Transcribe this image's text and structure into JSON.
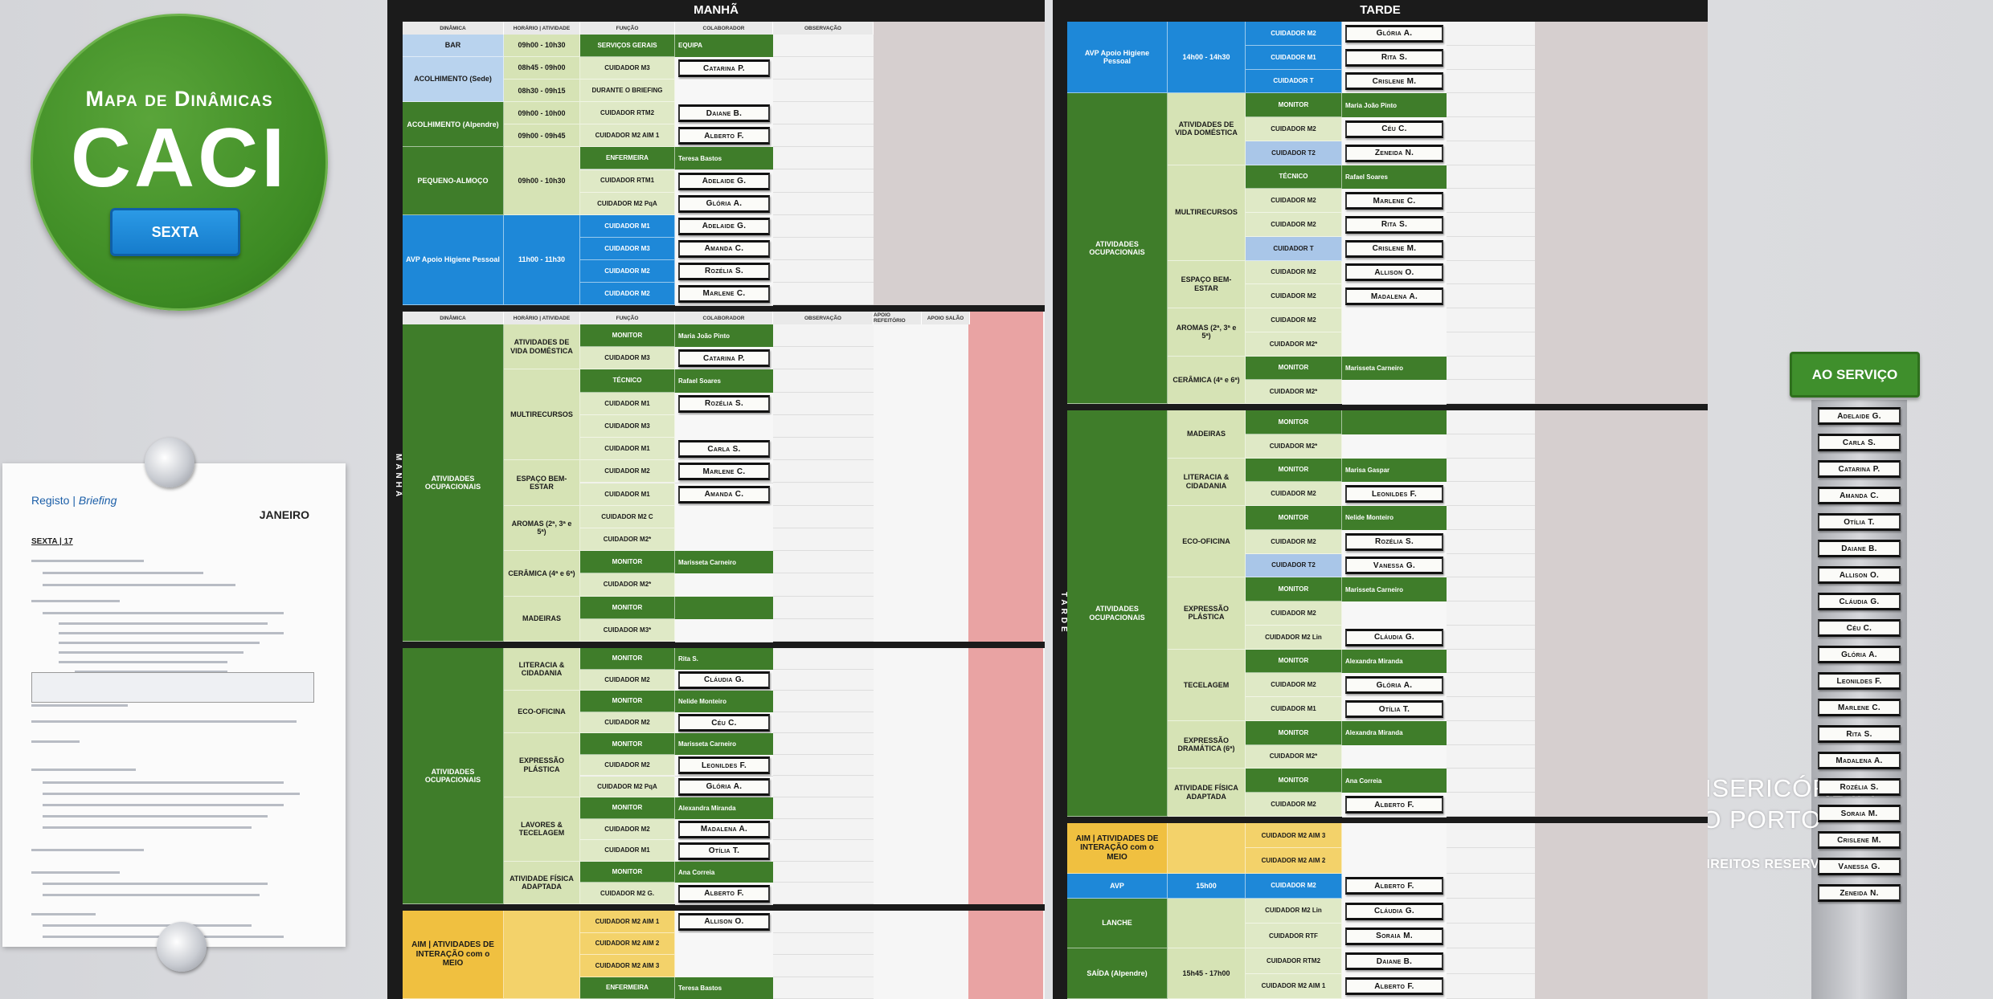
{
  "logo": {
    "subtitle": "Mapa de Dinâmicas",
    "title": "CACI",
    "day": "SEXTA"
  },
  "briefing": {
    "title": "Registo",
    "subtitle": "Briefing",
    "month": "JANEIRO",
    "date": "SEXTA | 17"
  },
  "boards": [
    {
      "title": "MANHÃ",
      "side_label": "MANHÃ",
      "sections": [
        {
          "header": [
            "DINÂMICA",
            "HORÁRIO | ATIVIDADE",
            "FUNÇÃO",
            "COLABORADOR",
            "OBSERVAÇÃO"
          ],
          "groups": [
            {
              "label": "BAR",
              "color": "#b9d3ee",
              "activities": [
                {
                  "label": "09h00 - 10h30",
                  "rows": [
                    {
                      "role": "SERVIÇOS GERAIS",
                      "name": "EQUIPA"
                    }
                  ]
                }
              ]
            },
            {
              "label": "ACOLHIMENTO (Sede)",
              "color": "#b9d3ee",
              "activities": [
                {
                  "label": "08h45 - 09h00",
                  "rows": [
                    {
                      "role": "CUIDADOR M3",
                      "name": "Catarina P."
                    }
                  ]
                },
                {
                  "label": "08h30 - 09h15",
                  "rows": [
                    {
                      "role": "DURANTE O BRIEFING"
                    }
                  ]
                }
              ]
            },
            {
              "label": "ACOLHIMENTO (Alpendre)",
              "color": "#3f7d2a",
              "activities": [
                {
                  "label": "09h00 - 10h00",
                  "rows": [
                    {
                      "role": "CUIDADOR RTM2",
                      "name": "Daiane B."
                    }
                  ]
                },
                {
                  "label": "09h00 - 09h45",
                  "rows": [
                    {
                      "role": "CUIDADOR M2 AIM 1",
                      "name": "Alberto F."
                    }
                  ]
                }
              ]
            },
            {
              "label": "PEQUENO-ALMOÇO",
              "color": "#3f7d2a",
              "activities": [
                {
                  "label": "09h00 - 10h30",
                  "rows": [
                    {
                      "role": "ENFERMEIRA",
                      "name": "Teresa Bastos"
                    },
                    {
                      "role": "CUIDADOR RTM1",
                      "name": "Adelaide G."
                    },
                    {
                      "role": "CUIDADOR M2 PqA",
                      "name": "Glória A."
                    }
                  ]
                }
              ]
            },
            {
              "label": "AVP Apoio Higiene Pessoal",
              "color": "#1e88d8",
              "activities": [
                {
                  "label": "11h00 - 11h30",
                  "rows": [
                    {
                      "role": "CUIDADOR M1",
                      "name": "Adelaide G."
                    },
                    {
                      "role": "CUIDADOR M3",
                      "name": "Amanda C."
                    },
                    {
                      "role": "CUIDADOR M2",
                      "name": "Rozélia S."
                    },
                    {
                      "role": "CUIDADOR M2",
                      "name": "Marlene C."
                    }
                  ]
                }
              ]
            }
          ]
        },
        {
          "header": [
            "DINÂMICA",
            "HORÁRIO | ATIVIDADE",
            "FUNÇÃO",
            "COLABORADOR",
            "OBSERVAÇÃO",
            "APOIO REFEITÓRIO",
            "APOIO SALÃO"
          ],
          "groups": [
            {
              "label": "ATIVIDADES OCUPACIONAIS",
              "color": "#3f7d2a",
              "activities": [
                {
                  "label": "ATIVIDADES DE VIDA DOMÉSTICA",
                  "rows": [
                    {
                      "role": "MONITOR",
                      "name": "Maria João Pinto"
                    },
                    {
                      "role": "CUIDADOR M3",
                      "name": "Catarina P."
                    }
                  ]
                },
                {
                  "label": "MULTIRECURSOS",
                  "rows": [
                    {
                      "role": "TÉCNICO",
                      "name": "Rafael Soares"
                    },
                    {
                      "role": "CUIDADOR M1",
                      "name": "Rozélia S."
                    },
                    {
                      "role": "CUIDADOR M3"
                    },
                    {
                      "role": "CUIDADOR M1",
                      "name": "Carla S."
                    }
                  ]
                },
                {
                  "label": "ESPAÇO BEM-ESTAR",
                  "rows": [
                    {
                      "role": "CUIDADOR M2",
                      "name": "Marlene C."
                    },
                    {
                      "role": "CUIDADOR M1",
                      "name": "Amanda C."
                    }
                  ]
                },
                {
                  "label": "AROMAS (2ª, 3ª e 5ª)",
                  "rows": [
                    {
                      "role": "CUIDADOR M2 C"
                    },
                    {
                      "role": "CUIDADOR M2*"
                    }
                  ]
                },
                {
                  "label": "CERÂMICA (4ª e 6ª)",
                  "rows": [
                    {
                      "role": "MONITOR",
                      "name": "Marisseta Carneiro"
                    },
                    {
                      "role": "CUIDADOR M2*"
                    }
                  ]
                },
                {
                  "label": "MADEIRAS",
                  "rows": [
                    {
                      "role": "MONITOR"
                    },
                    {
                      "role": "CUIDADOR M3*"
                    }
                  ]
                }
              ]
            }
          ]
        },
        {
          "groups": [
            {
              "label": "ATIVIDADES OCUPACIONAIS",
              "color": "#3f7d2a",
              "activities": [
                {
                  "label": "LITERACIA & CIDADANIA",
                  "rows": [
                    {
                      "role": "MONITOR",
                      "name": "Rita S."
                    },
                    {
                      "role": "CUIDADOR M2",
                      "name": "Cláudia G."
                    }
                  ]
                },
                {
                  "label": "ECO-OFICINA",
                  "rows": [
                    {
                      "role": "MONITOR",
                      "name": "Nelide Monteiro"
                    },
                    {
                      "role": "CUIDADOR M2",
                      "name": "Céu C."
                    }
                  ]
                },
                {
                  "label": "EXPRESSÃO PLÁSTICA",
                  "rows": [
                    {
                      "role": "MONITOR",
                      "name": "Marisseta Carneiro"
                    },
                    {
                      "role": "CUIDADOR M2",
                      "name": "Leonildes F."
                    },
                    {
                      "role": "CUIDADOR M2 PqA",
                      "name": "Glória A."
                    }
                  ]
                },
                {
                  "label": "LAVORES & TECELAGEM",
                  "rows": [
                    {
                      "role": "MONITOR",
                      "name": "Alexandra Miranda"
                    },
                    {
                      "role": "CUIDADOR M2",
                      "name": "Madalena A."
                    },
                    {
                      "role": "CUIDADOR M1",
                      "name": "Otília T."
                    }
                  ]
                },
                {
                  "label": "ATIVIDADE FÍSICA ADAPTADA",
                  "rows": [
                    {
                      "role": "MONITOR",
                      "name": "Ana Correia"
                    },
                    {
                      "role": "CUIDADOR M2 G.",
                      "name": "Alberto F."
                    }
                  ]
                }
              ]
            }
          ]
        },
        {
          "groups": [
            {
              "label": "AIM | ATIVIDADES DE INTERAÇÃO com o MEIO",
              "color": "#f0c040",
              "activities": [
                {
                  "label": "",
                  "rows": [
                    {
                      "role": "CUIDADOR M2 AIM 1",
                      "name": "Allison O."
                    },
                    {
                      "role": "CUIDADOR M2 AIM 2"
                    },
                    {
                      "role": "CUIDADOR M2 AIM 3"
                    },
                    {
                      "role": "ENFERMEIRA",
                      "name": "Teresa Bastos"
                    }
                  ]
                }
              ]
            }
          ]
        }
      ]
    },
    {
      "title": "TARDE",
      "side_label": "TARDE",
      "sections": [
        {
          "groups": [
            {
              "label": "AVP Apoio Higiene Pessoal",
              "color": "#1e88d8",
              "activities": [
                {
                  "label": "14h00 - 14h30",
                  "rows": [
                    {
                      "role": "CUIDADOR M2",
                      "name": "Glória A."
                    },
                    {
                      "role": "CUIDADOR M1",
                      "name": "Rita S."
                    },
                    {
                      "role": "CUIDADOR T",
                      "name": "Crislene M."
                    }
                  ]
                }
              ]
            },
            {
              "label": "ATIVIDADES OCUPACIONAIS",
              "color": "#3f7d2a",
              "activities": [
                {
                  "label": "ATIVIDADES DE VIDA DOMÉSTICA",
                  "rows": [
                    {
                      "role": "MONITOR",
                      "name": "Maria João Pinto"
                    },
                    {
                      "role": "CUIDADOR M2",
                      "name": "Céu C."
                    },
                    {
                      "role": "CUIDADOR T2",
                      "name": "Zeneida N."
                    }
                  ]
                },
                {
                  "label": "MULTIRECURSOS",
                  "rows": [
                    {
                      "role": "TÉCNICO",
                      "name": "Rafael Soares"
                    },
                    {
                      "role": "CUIDADOR M2",
                      "name": "Marlene C."
                    },
                    {
                      "role": "CUIDADOR M2",
                      "name": "Rita S."
                    },
                    {
                      "role": "CUIDADOR T",
                      "name": "Crislene M."
                    }
                  ]
                },
                {
                  "label": "ESPAÇO BEM-ESTAR",
                  "rows": [
                    {
                      "role": "CUIDADOR M2",
                      "name": "Allison O."
                    },
                    {
                      "role": "CUIDADOR M2",
                      "name": "Madalena A."
                    }
                  ]
                },
                {
                  "label": "AROMAS (2ª, 3ª e 5ª)",
                  "rows": [
                    {
                      "role": "CUIDADOR M2"
                    },
                    {
                      "role": "CUIDADOR M2*"
                    }
                  ]
                },
                {
                  "label": "CERÂMICA (4ª e 6ª)",
                  "rows": [
                    {
                      "role": "MONITOR",
                      "name": "Marisseta Carneiro"
                    },
                    {
                      "role": "CUIDADOR M2*"
                    }
                  ]
                }
              ]
            }
          ]
        },
        {
          "groups": [
            {
              "label": "ATIVIDADES OCUPACIONAIS",
              "color": "#3f7d2a",
              "activities": [
                {
                  "label": "MADEIRAS",
                  "rows": [
                    {
                      "role": "MONITOR"
                    },
                    {
                      "role": "CUIDADOR M2*"
                    }
                  ]
                },
                {
                  "label": "LITERACIA & CIDADANIA",
                  "rows": [
                    {
                      "role": "MONITOR",
                      "name": "Marisa Gaspar"
                    },
                    {
                      "role": "CUIDADOR M2",
                      "name": "Leonildes F."
                    }
                  ]
                },
                {
                  "label": "ECO-OFICINA",
                  "rows": [
                    {
                      "role": "MONITOR",
                      "name": "Nelide Monteiro"
                    },
                    {
                      "role": "CUIDADOR M2",
                      "name": "Rozélia S."
                    },
                    {
                      "role": "CUIDADOR T2",
                      "name": "Vanessa G."
                    }
                  ]
                },
                {
                  "label": "EXPRESSÃO PLÁSTICA",
                  "rows": [
                    {
                      "role": "MONITOR",
                      "name": "Marisseta Carneiro"
                    },
                    {
                      "role": "CUIDADOR M2"
                    },
                    {
                      "role": "CUIDADOR M2 Lin",
                      "name": "Cláudia G."
                    }
                  ]
                },
                {
                  "label": "TECELAGEM",
                  "rows": [
                    {
                      "role": "MONITOR",
                      "name": "Alexandra Miranda"
                    },
                    {
                      "role": "CUIDADOR M2",
                      "name": "Glória A."
                    },
                    {
                      "role": "CUIDADOR M1",
                      "name": "Otília T."
                    }
                  ]
                },
                {
                  "label": "EXPRESSÃO DRAMÁTICA (6ª)",
                  "rows": [
                    {
                      "role": "MONITOR",
                      "name": "Alexandra Miranda"
                    },
                    {
                      "role": "CUIDADOR M2*"
                    }
                  ]
                },
                {
                  "label": "ATIVIDADE FÍSICA ADAPTADA",
                  "rows": [
                    {
                      "role": "MONITOR",
                      "name": "Ana Correia"
                    },
                    {
                      "role": "CUIDADOR M2",
                      "name": "Alberto F."
                    }
                  ]
                }
              ]
            }
          ]
        },
        {
          "groups": [
            {
              "label": "AIM | ATIVIDADES DE INTERAÇÃO com o MEIO",
              "color": "#f0c040",
              "activities": [
                {
                  "label": "",
                  "rows": [
                    {
                      "role": "CUIDADOR M2 AIM 3"
                    },
                    {
                      "role": "CUIDADOR M2 AIM 2"
                    }
                  ]
                }
              ]
            },
            {
              "label": "AVP",
              "color": "#1e88d8",
              "activities": [
                {
                  "label": "15h00",
                  "rows": [
                    {
                      "role": "CUIDADOR M2",
                      "name": "Alberto F."
                    }
                  ]
                }
              ]
            },
            {
              "label": "LANCHE",
              "color": "#3f7d2a",
              "activities": [
                {
                  "label": "",
                  "rows": [
                    {
                      "role": "CUIDADOR M2 Lin",
                      "name": "Cláudia G."
                    },
                    {
                      "role": "CUIDADOR RTF",
                      "name": "Soraia M."
                    }
                  ]
                }
              ]
            },
            {
              "label": "SAÍDA (Alpendre)",
              "color": "#3f7d2a",
              "activities": [
                {
                  "label": "15h45 - 17h00",
                  "rows": [
                    {
                      "role": "CUIDADOR RTM2",
                      "name": "Daiane B."
                    },
                    {
                      "role": "CUIDADOR M2 AIM 1",
                      "name": "Alberto F."
                    }
                  ]
                }
              ]
            }
          ]
        }
      ]
    }
  ],
  "on_duty": {
    "title": "AO SERVIÇO",
    "names": [
      "Adelaide G.",
      "Carla S.",
      "Catarina P.",
      "Amanda C.",
      "Otília T.",
      "Daiane B.",
      "Allison O.",
      "Cláudia G.",
      "Céu C.",
      "Glória A.",
      "Leonildes F.",
      "Marlene C.",
      "Rita S.",
      "Madalena A.",
      "Rozélia S.",
      "Soraia M.",
      "Crislene M.",
      "Vanessa G.",
      "Zeneida N."
    ]
  },
  "watermark": {
    "line1": "MISERICÓRDIA",
    "line2": "DO PORTO",
    "rights": "© DIREITOS RESERVADOS"
  }
}
